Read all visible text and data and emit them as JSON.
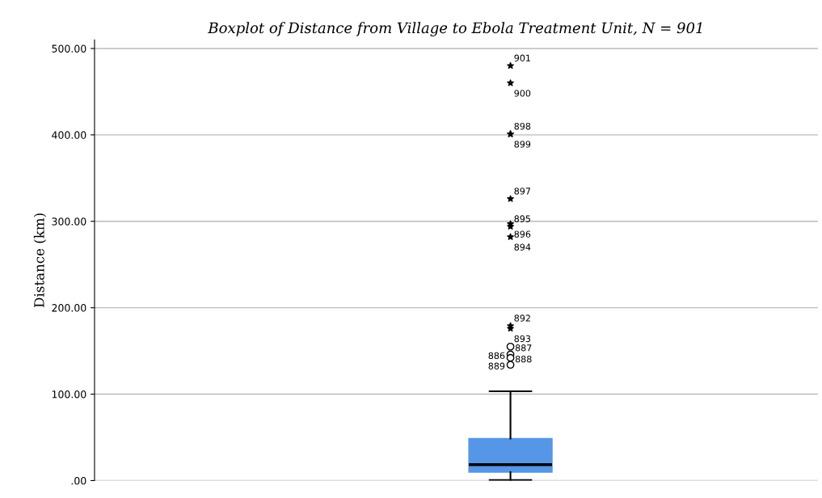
{
  "chart_data": {
    "type": "box",
    "title": "Boxplot of Distance from Village to Ebola Treatment Unit, N = 901",
    "ylabel": "Distance (km)",
    "categories": [
      null
    ],
    "series": [
      {
        "color": "#5596e6",
        "boxes": [
          {
            "low": 0.5,
            "q1": 9.7,
            "median": 18.5,
            "q3": 48.7,
            "high": 103.3,
            "outliers": [
              480,
              460,
              401,
              401,
              326,
              297,
              294,
              282,
              179,
              176,
              155,
              146,
              142,
              134
            ]
          }
        ]
      }
    ],
    "ylim": [
      0,
      510
    ],
    "yticks": [
      {
        "value": 0,
        "label": ".00"
      },
      {
        "value": 100,
        "label": "100.00"
      },
      {
        "value": 200,
        "label": "200.00"
      },
      {
        "value": 300,
        "label": "300.00"
      },
      {
        "value": 400,
        "label": "400.00"
      },
      {
        "value": 500,
        "label": "500.00"
      }
    ],
    "grid": "y",
    "annotations": [
      "901",
      "900",
      "898",
      "899",
      "897",
      "896",
      "895",
      "894",
      "892",
      "893",
      "887",
      "886",
      "888",
      "889"
    ]
  }
}
